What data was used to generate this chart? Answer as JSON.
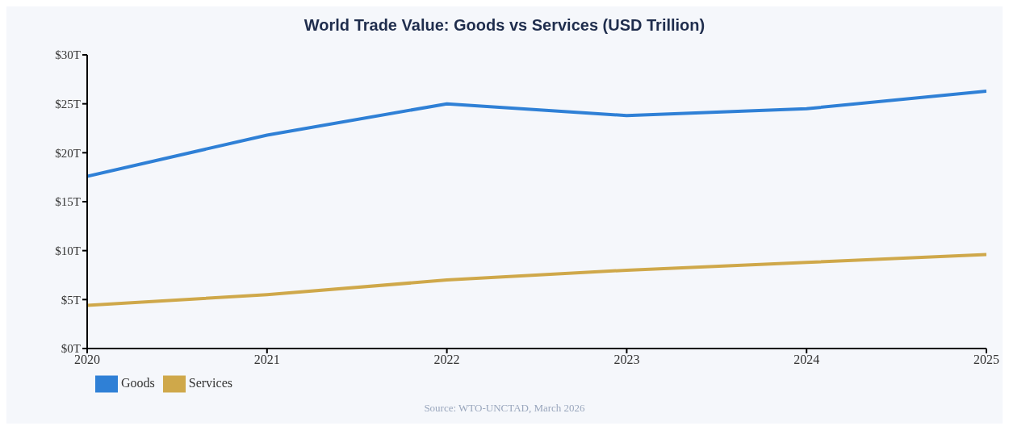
{
  "chart_data": {
    "type": "line",
    "title": "World Trade Value: Goods vs Services (USD Trillion)",
    "x": [
      2020,
      2021,
      2022,
      2023,
      2024,
      2025
    ],
    "series": [
      {
        "name": "Goods",
        "color": "#2f80d6",
        "values": [
          17.6,
          21.8,
          25.0,
          23.8,
          24.5,
          26.3
        ]
      },
      {
        "name": "Services",
        "color": "#cfa84a",
        "values": [
          4.4,
          5.5,
          7.0,
          8.0,
          8.8,
          9.6
        ]
      }
    ],
    "xlim": [
      2020,
      2025
    ],
    "xticks": [
      2020,
      2021,
      2022,
      2023,
      2024,
      2025
    ],
    "ylim": [
      0,
      30
    ],
    "yticks": [
      {
        "value": 0,
        "label": "$0T"
      },
      {
        "value": 5,
        "label": "$5T"
      },
      {
        "value": 10,
        "label": "$10T"
      },
      {
        "value": 15,
        "label": "$15T"
      },
      {
        "value": 20,
        "label": "$20T"
      },
      {
        "value": 25,
        "label": "$25T"
      },
      {
        "value": 30,
        "label": "$30T"
      }
    ],
    "grid": false,
    "legend": "bottom left",
    "marker": "none",
    "line_style": "solid",
    "annotations": [
      "Source: WTO-UNCTAD, March 2026"
    ]
  }
}
